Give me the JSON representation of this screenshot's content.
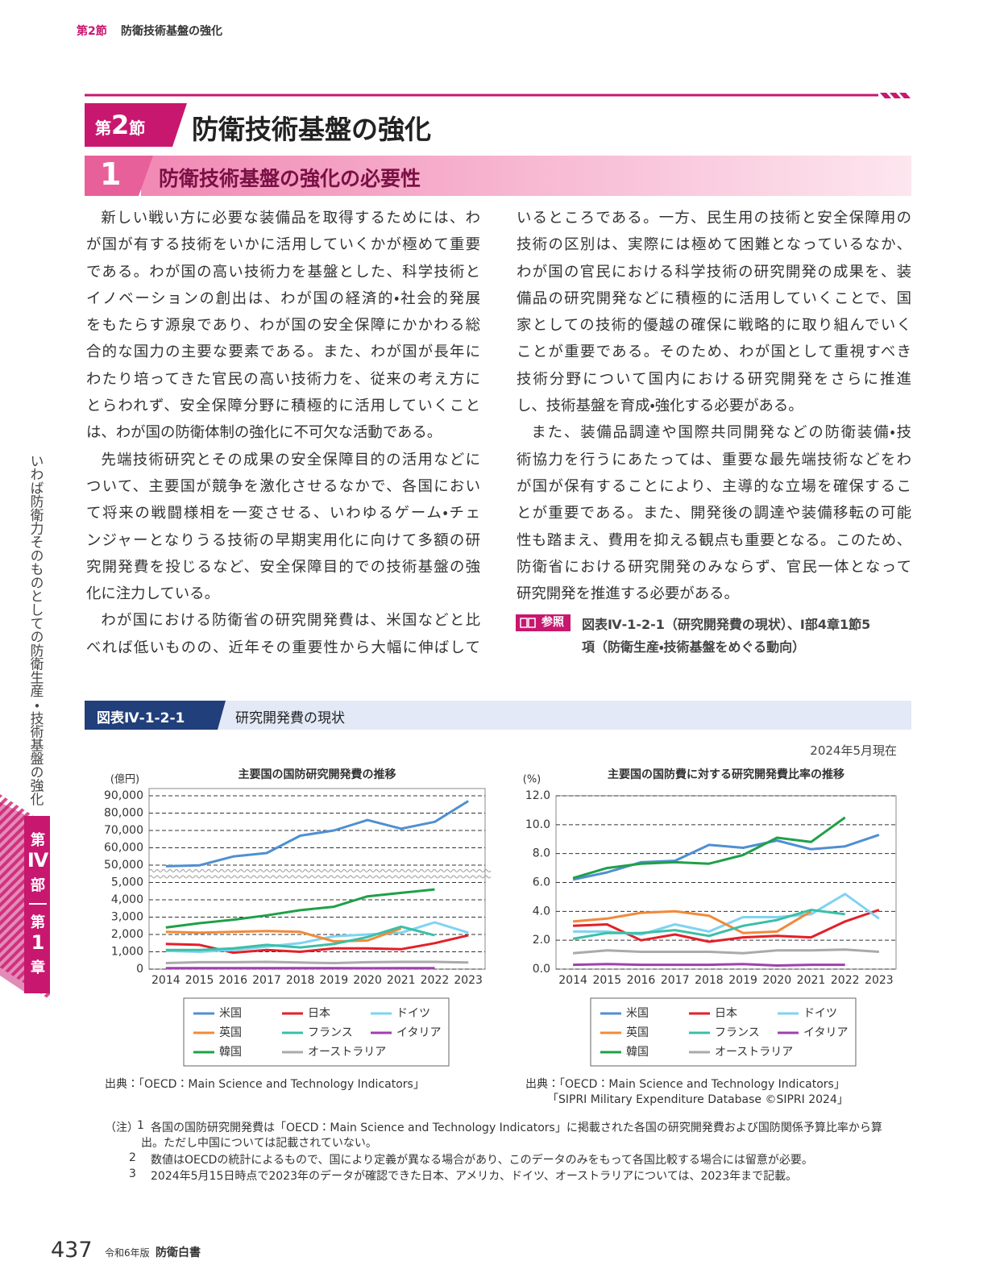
{
  "header": {
    "section_label": "第2節",
    "section_title": "防衛技術基盤の強化"
  },
  "section": {
    "badge_pre": "第",
    "badge_num": "2",
    "badge_post": "節",
    "title": "防衛技術基盤の強化"
  },
  "subsection": {
    "number": "1",
    "title": "防衛技術基盤の強化の必要性"
  },
  "body": {
    "columns": [
      {
        "paragraphs": [
          {
            "lines": [
              "新しい戦い方に必要な装備品を取得するためには、わ",
              "が国が有する技術をいかに活用していくかが極めて重要",
              "である。わが国の高い技術力を基盤とした、科学技術と",
              "イノベーションの創出は、わが国の経済的・社会的発展",
              "をもたらす源泉であり、わが国の安全保障にかかわる総",
              "合的な国力の主要な要素である。また、わが国が長年に",
              "わたり培ってきた官民の高い技術力を、従来の考え方に",
              "とらわれず、安全保障分野に積極的に活用していくこと",
              "は、わが国の防衛体制の強化に不可欠な活動である。"
            ]
          },
          {
            "lines": [
              "先端技術研究とその成果の安全保障目的の活用などに",
              "ついて、主要国が競争を激化させるなかで、各国におい",
              "て将来の戦闘様相を一変させる、いわゆるゲーム・チェ",
              "ンジャーとなりうる技術の早期実用化に向けて多額の研",
              "究開発費を投じるなど、安全保障目的での技術基盤の強",
              "化に注力している。"
            ]
          },
          {
            "lines": [
              "わが国における防衛省の研究開発費は、米国などと比",
              "べれば低いものの、近年その重要性から大幅に伸ばして"
            ]
          }
        ]
      },
      {
        "paragraphs": [
          {
            "lines": [
              "いるところである。一方、民生用の技術と安全保障用の",
              "技術の区別は、実際には極めて困難となっているなか、",
              "わが国の官民における科学技術の研究開発の成果を、装",
              "備品の研究開発などに積極的に活用していくことで、国",
              "家としての技術的優越の確保に戦略的に取り組んでいく",
              "ことが重要である。そのため、わが国として重視すべき",
              "技術分野について国内における研究開発をさらに推進",
              "し、技術基盤を育成・強化する必要がある。"
            ]
          },
          {
            "lines": [
              "また、装備品調達や国際共同開発などの防衛装備・技",
              "術協力を行うにあたっては、重要な最先端技術などをわ",
              "が国が保有することにより、主導的な立場を確保するこ",
              "とが重要である。また、開発後の調達や装備移転の可能",
              "性も踏まえ、費用を抑える観点も重要となる。このため、",
              "防衛省における研究開発のみならず、官民一体となって",
              "研究開発を推進する必要がある。"
            ]
          }
        ]
      }
    ]
  },
  "reference": {
    "badge": "参照",
    "lines": [
      "図表Ⅳ-1-2-1（研究開発費の現状）、Ⅰ部4章1節5",
      "項（防衛生産・技術基盤をめぐる動向）"
    ]
  },
  "side": {
    "text": "いわば防衛力そのものとしての防衛生産・技術基盤の強化",
    "part": [
      "第",
      "Ⅳ",
      "部"
    ],
    "chapter": [
      "第",
      "1",
      "章"
    ]
  },
  "figure": {
    "number": "図表Ⅳ-1-2-1",
    "title": "研究開発費の現状",
    "date": "2024年5月現在"
  },
  "chart_data": [
    {
      "type": "line",
      "title": "主要国の国防研究開発費の推移",
      "y_label": "(億円)",
      "categories": [
        "2014",
        "2015",
        "2016",
        "2017",
        "2018",
        "2019",
        "2020",
        "2021",
        "2022",
        "2023"
      ],
      "series": [
        {
          "name": "米国",
          "color": "#4f8fd1",
          "values": [
            47000,
            49500,
            55000,
            57000,
            67000,
            70000,
            76000,
            71000,
            75000,
            87000
          ]
        },
        {
          "name": "日本",
          "color": "#e2202a",
          "values": [
            1450,
            1400,
            950,
            1100,
            1000,
            1200,
            1200,
            1150,
            1500,
            1950
          ]
        },
        {
          "name": "ドイツ",
          "color": "#7fd3f0",
          "values": [
            1050,
            1000,
            1100,
            1300,
            1500,
            1900,
            2000,
            2100,
            2700,
            2100
          ]
        },
        {
          "name": "英国",
          "color": "#f08a3a",
          "values": [
            2150,
            2100,
            2150,
            2200,
            2150,
            1600,
            1650,
            2350,
            null,
            null
          ]
        },
        {
          "name": "フランス",
          "color": "#3bbfa6",
          "values": [
            1100,
            1100,
            1200,
            1400,
            1250,
            1450,
            1850,
            2450,
            1950,
            null
          ]
        },
        {
          "name": "イタリア",
          "color": "#a040b0",
          "values": [
            60,
            60,
            55,
            60,
            55,
            60,
            50,
            55,
            60,
            null
          ]
        },
        {
          "name": "韓国",
          "color": "#1fa048",
          "values": [
            2400,
            2650,
            2850,
            3100,
            3400,
            3600,
            4200,
            4400,
            4600,
            null
          ]
        },
        {
          "name": "オーストラリア",
          "color": "#aaaaaa",
          "values": [
            350,
            400,
            400,
            420,
            380,
            350,
            400,
            420,
            420,
            380
          ]
        }
      ],
      "ylim": [
        0,
        90000
      ],
      "yticks": [
        0,
        {
          "value": 1000,
          "label": "1,000"
        },
        {
          "value": 2000,
          "label": "2,000"
        },
        {
          "value": 3000,
          "label": "3,000"
        },
        {
          "value": 4000,
          "label": "4,000"
        },
        {
          "value": 5000,
          "label": "5,000"
        },
        {
          "value": 50000,
          "label": "50,000"
        },
        {
          "value": 60000,
          "label": "60,000"
        },
        {
          "value": 70000,
          "label": "70,000"
        },
        {
          "value": 80000,
          "label": "80,000"
        },
        {
          "value": 90000,
          "label": "90,000"
        }
      ],
      "axis_break": [
        5000,
        50000
      ],
      "grid": true,
      "legend": "bottom",
      "source": [
        "出典：「OECD：Main Science and Technology Indicators」"
      ]
    },
    {
      "type": "line",
      "title": "主要国の国防費に対する研究開発費比率の推移",
      "y_label": "(%)",
      "categories": [
        "2014",
        "2015",
        "2016",
        "2017",
        "2018",
        "2019",
        "2020",
        "2021",
        "2022",
        "2023"
      ],
      "series": [
        {
          "name": "米国",
          "color": "#4f8fd1",
          "values": [
            6.2,
            6.7,
            7.4,
            7.5,
            8.6,
            8.4,
            8.9,
            8.3,
            8.5,
            9.3
          ]
        },
        {
          "name": "日本",
          "color": "#e2202a",
          "values": [
            3.0,
            3.1,
            2.0,
            2.4,
            1.9,
            2.2,
            2.3,
            2.2,
            3.3,
            4.1
          ]
        },
        {
          "name": "ドイツ",
          "color": "#7fd3f0",
          "values": [
            2.6,
            2.6,
            2.4,
            3.1,
            2.6,
            3.6,
            3.6,
            3.8,
            5.2,
            3.5
          ]
        },
        {
          "name": "英国",
          "color": "#f08a3a",
          "values": [
            3.3,
            3.5,
            3.9,
            4.0,
            3.7,
            2.5,
            2.6,
            4.0,
            null,
            null
          ]
        },
        {
          "name": "フランス",
          "color": "#3bbfa6",
          "values": [
            2.1,
            2.5,
            2.5,
            2.7,
            2.3,
            3.0,
            3.4,
            4.1,
            3.8,
            null
          ]
        },
        {
          "name": "イタリア",
          "color": "#a040b0",
          "values": [
            0.3,
            0.35,
            0.3,
            0.3,
            0.3,
            0.35,
            0.25,
            0.3,
            0.3,
            null
          ]
        },
        {
          "name": "韓国",
          "color": "#1fa048",
          "values": [
            6.3,
            7.0,
            7.3,
            7.4,
            7.3,
            7.9,
            9.1,
            8.8,
            10.5,
            null
          ]
        },
        {
          "name": "オーストラリア",
          "color": "#aaaaaa",
          "values": [
            1.1,
            1.3,
            1.2,
            1.2,
            1.2,
            1.1,
            1.3,
            1.3,
            1.35,
            1.2
          ]
        }
      ],
      "ylim": [
        0,
        12
      ],
      "yticks": [
        {
          "value": 0,
          "label": "0.0"
        },
        {
          "value": 2,
          "label": "2.0"
        },
        {
          "value": 4,
          "label": "4.0"
        },
        {
          "value": 6,
          "label": "6.0"
        },
        {
          "value": 8,
          "label": "8.0"
        },
        {
          "value": 10,
          "label": "10.0"
        },
        {
          "value": 12,
          "label": "12.0"
        }
      ],
      "grid": true,
      "legend": "bottom",
      "source": [
        "出典：「OECD：Main Science and Technology Indicators」",
        "「SIPRI Military Expenditure Database ©SIPRI 2024」"
      ]
    }
  ],
  "notes": {
    "label": "（注）",
    "items": [
      {
        "number": "1",
        "lines": [
          "各国の国防研究開発費は「OECD：Main Science and Technology Indicators」に掲載された各国の研究開発費および国防関係予算比率から算",
          "出。ただし中国については記載されていない。"
        ]
      },
      {
        "number": "2",
        "lines": [
          "数値はOECDの統計によるもので、国により定義が異なる場合があり、このデータのみをもって各国比較する場合には留意が必要。"
        ]
      },
      {
        "number": "3",
        "lines": [
          "2024年5月15日時点で2023年のデータが確認できた日本、アメリカ、ドイツ、オーストラリアについては、2023年まで記載。"
        ]
      }
    ]
  },
  "footer": {
    "page": "437",
    "edition": "令和6年版",
    "book": "防衛白書"
  }
}
